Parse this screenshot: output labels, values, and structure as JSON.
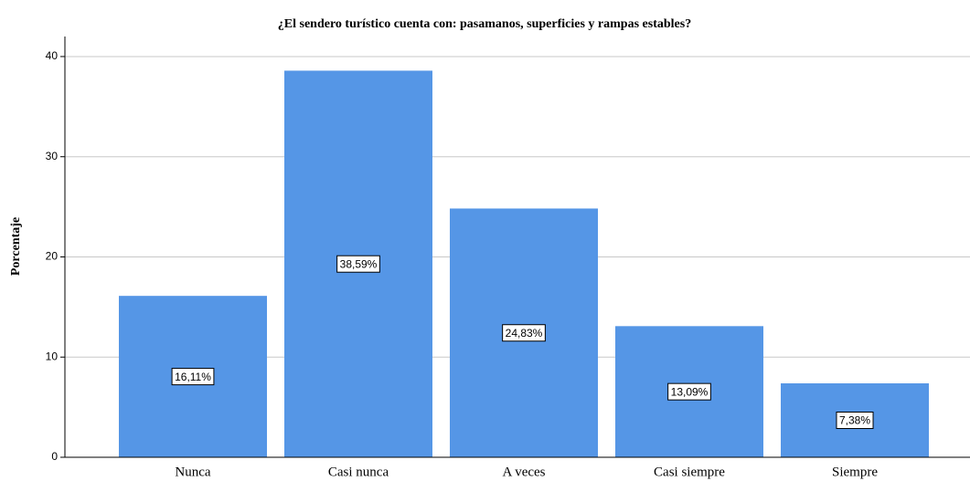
{
  "chart_data": {
    "type": "bar",
    "title": "¿El sendero turístico cuenta con: pasamanos, superficies y rampas estables?",
    "ylabel": "Porcentaje",
    "categories": [
      "Nunca",
      "Casi nunca",
      "A veces",
      "Casi siempre",
      "Siempre"
    ],
    "values": [
      16.11,
      38.59,
      24.83,
      13.09,
      7.38
    ],
    "value_labels": [
      "16,11%",
      "38,59%",
      "24,83%",
      "13,09%",
      "7,38%"
    ],
    "color": "#5596e6",
    "ylim": [
      0,
      42
    ],
    "yticks": [
      0,
      10,
      20,
      30,
      40
    ],
    "grid": true
  }
}
